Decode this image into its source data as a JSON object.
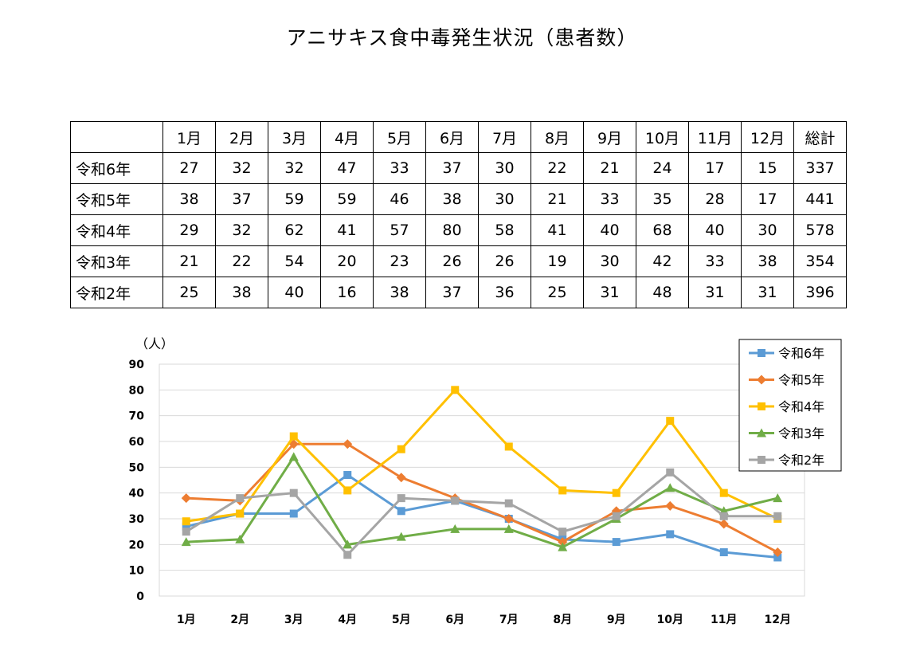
{
  "title": "アニサキス食中毒発生状況（患者数）",
  "table": {
    "headers": [
      "1月",
      "2月",
      "3月",
      "4月",
      "5月",
      "6月",
      "7月",
      "8月",
      "9月",
      "10月",
      "11月",
      "12月",
      "総計"
    ],
    "rows": [
      {
        "label": "令和6年",
        "cells": [
          "27",
          "32",
          "32",
          "47",
          "33",
          "37",
          "30",
          "22",
          "21",
          "24",
          "17",
          "15",
          "337"
        ]
      },
      {
        "label": "令和5年",
        "cells": [
          "38",
          "37",
          "59",
          "59",
          "46",
          "38",
          "30",
          "21",
          "33",
          "35",
          "28",
          "17",
          "441"
        ]
      },
      {
        "label": "令和4年",
        "cells": [
          "29",
          "32",
          "62",
          "41",
          "57",
          "80",
          "58",
          "41",
          "40",
          "68",
          "40",
          "30",
          "578"
        ]
      },
      {
        "label": "令和3年",
        "cells": [
          "21",
          "22",
          "54",
          "20",
          "23",
          "26",
          "26",
          "19",
          "30",
          "42",
          "33",
          "38",
          "354"
        ]
      },
      {
        "label": "令和2年",
        "cells": [
          "25",
          "38",
          "40",
          "16",
          "38",
          "37",
          "36",
          "25",
          "31",
          "48",
          "31",
          "31",
          "396"
        ]
      }
    ]
  },
  "chart_data": {
    "type": "line",
    "title": "",
    "ylabel": "（人）",
    "xlabel": "",
    "ylim": [
      0,
      90
    ],
    "yticks": [
      "0",
      "10",
      "20",
      "30",
      "40",
      "50",
      "60",
      "70",
      "80",
      "90"
    ],
    "categories": [
      "1月",
      "2月",
      "3月",
      "4月",
      "5月",
      "6月",
      "7月",
      "8月",
      "9月",
      "10月",
      "11月",
      "12月"
    ],
    "grid": "horizontal",
    "legend_position": "top-right",
    "series": [
      {
        "name": "令和6年",
        "color": "#5b9bd5",
        "marker": "square",
        "values": [
          27,
          32,
          32,
          47,
          33,
          37,
          30,
          22,
          21,
          24,
          17,
          15
        ]
      },
      {
        "name": "令和5年",
        "color": "#ed7d31",
        "marker": "diamond",
        "values": [
          38,
          37,
          59,
          59,
          46,
          38,
          30,
          21,
          33,
          35,
          28,
          17
        ]
      },
      {
        "name": "令和4年",
        "color": "#ffc000",
        "marker": "square",
        "values": [
          29,
          32,
          62,
          41,
          57,
          80,
          58,
          41,
          40,
          68,
          40,
          30
        ]
      },
      {
        "name": "令和3年",
        "color": "#70ad47",
        "marker": "triangle",
        "values": [
          21,
          22,
          54,
          20,
          23,
          26,
          26,
          19,
          30,
          42,
          33,
          38
        ]
      },
      {
        "name": "令和2年",
        "color": "#a5a5a5",
        "marker": "square",
        "values": [
          25,
          38,
          40,
          16,
          38,
          37,
          36,
          25,
          31,
          48,
          31,
          31
        ]
      }
    ]
  }
}
